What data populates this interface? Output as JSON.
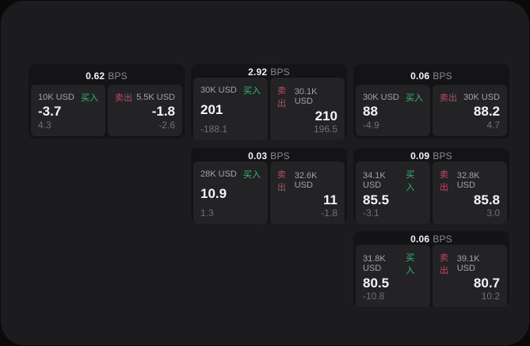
{
  "labels": {
    "bps_unit": "BPS",
    "buy": "买入",
    "sell": "卖出"
  },
  "colors": {
    "buy_green": "#2fbd74",
    "sell_red": "#bf4a63",
    "surface": "#1c1c1e",
    "card_background": "#141416",
    "panel_background": "#232326"
  },
  "cards": [
    {
      "col": 1,
      "row": 1,
      "bps": "0.62",
      "buy": {
        "amount": "10K USD",
        "price": "-3.7",
        "change": "4.3"
      },
      "sell": {
        "amount": "5.5K USD",
        "price": "-1.8",
        "change": "-2.6"
      }
    },
    {
      "col": 2,
      "row": 1,
      "bps": "2.92",
      "buy": {
        "amount": "30K USD",
        "price": "201",
        "change": "-188.1"
      },
      "sell": {
        "amount": "30.1K USD",
        "price": "210",
        "change": "196.5"
      }
    },
    {
      "col": 3,
      "row": 1,
      "bps": "0.06",
      "buy": {
        "amount": "30K USD",
        "price": "88",
        "change": "-4.9"
      },
      "sell": {
        "amount": "30K USD",
        "price": "88.2",
        "change": "4.7"
      }
    },
    {
      "col": 2,
      "row": 2,
      "bps": "0.03",
      "buy": {
        "amount": "28K USD",
        "price": "10.9",
        "change": "1.3"
      },
      "sell": {
        "amount": "32.6K USD",
        "price": "11",
        "change": "-1.8"
      }
    },
    {
      "col": 3,
      "row": 2,
      "bps": "0.09",
      "buy": {
        "amount": "34.1K USD",
        "price": "85.5",
        "change": "-3.1"
      },
      "sell": {
        "amount": "32.8K USD",
        "price": "85.8",
        "change": "3.0"
      }
    },
    {
      "col": 3,
      "row": 3,
      "bps": "0.06",
      "buy": {
        "amount": "31.8K USD",
        "price": "80.5",
        "change": "-10.8"
      },
      "sell": {
        "amount": "39.1K USD",
        "price": "80.7",
        "change": "10.2"
      }
    }
  ]
}
